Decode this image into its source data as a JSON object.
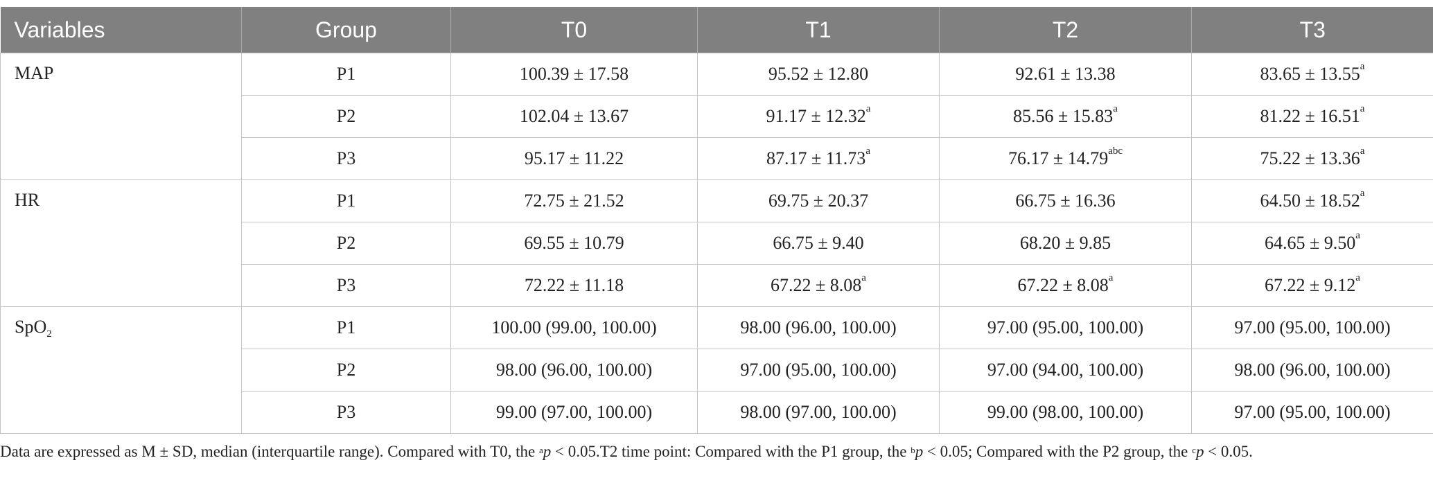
{
  "table": {
    "header": [
      "Variables",
      "Group",
      "T0",
      "T1",
      "T2",
      "T3"
    ],
    "rows": [
      {
        "variable": {
          "text": "MAP"
        },
        "group": "P1",
        "cells": [
          {
            "text": "100.39 ± 17.58"
          },
          {
            "text": "95.52 ± 12.80"
          },
          {
            "text": "92.61 ± 13.38"
          },
          {
            "text": "83.65 ± 13.55",
            "sup": "a"
          }
        ]
      },
      {
        "group": "P2",
        "cells": [
          {
            "text": "102.04 ± 13.67"
          },
          {
            "text": "91.17 ± 12.32",
            "sup": "a"
          },
          {
            "text": "85.56 ± 15.83",
            "sup": "a"
          },
          {
            "text": "81.22 ± 16.51",
            "sup": "a"
          }
        ]
      },
      {
        "group": "P3",
        "cells": [
          {
            "text": "95.17 ± 11.22"
          },
          {
            "text": "87.17 ± 11.73",
            "sup": "a"
          },
          {
            "text": "76.17 ± 14.79",
            "sup": "abc"
          },
          {
            "text": "75.22 ± 13.36",
            "sup": "a"
          }
        ]
      },
      {
        "variable": {
          "text": "HR"
        },
        "group": "P1",
        "cells": [
          {
            "text": "72.75 ± 21.52"
          },
          {
            "text": "69.75 ± 20.37"
          },
          {
            "text": "66.75 ± 16.36"
          },
          {
            "text": "64.50 ± 18.52",
            "sup": "a"
          }
        ]
      },
      {
        "group": "P2",
        "cells": [
          {
            "text": "69.55 ± 10.79"
          },
          {
            "text": "66.75 ± 9.40"
          },
          {
            "text": "68.20 ± 9.85"
          },
          {
            "text": "64.65 ± 9.50",
            "sup": "a"
          }
        ]
      },
      {
        "group": "P3",
        "cells": [
          {
            "text": "72.22 ± 11.18"
          },
          {
            "text": "67.22 ± 8.08",
            "sup": "a"
          },
          {
            "text": "67.22 ± 8.08",
            "sup": "a"
          },
          {
            "text": "67.22 ± 9.12",
            "sup": "a"
          }
        ]
      },
      {
        "variable": {
          "text": "SpO",
          "sub": "2"
        },
        "group": "P1",
        "cells": [
          {
            "text": "100.00 (99.00, 100.00)"
          },
          {
            "text": "98.00 (96.00, 100.00)"
          },
          {
            "text": "97.00 (95.00, 100.00)"
          },
          {
            "text": "97.00 (95.00, 100.00)"
          }
        ]
      },
      {
        "group": "P2",
        "cells": [
          {
            "text": "98.00 (96.00, 100.00)"
          },
          {
            "text": "97.00 (95.00, 100.00)"
          },
          {
            "text": "97.00 (94.00, 100.00)"
          },
          {
            "text": "98.00 (96.00, 100.00)"
          }
        ]
      },
      {
        "group": "P3",
        "cells": [
          {
            "text": "99.00 (97.00, 100.00)"
          },
          {
            "text": "98.00 (97.00, 100.00)"
          },
          {
            "text": "99.00 (98.00, 100.00)"
          },
          {
            "text": "97.00 (95.00, 100.00)"
          }
        ]
      }
    ]
  },
  "footnote": [
    {
      "text": "Data are expressed as M ± SD, median (interquartile range). Compared with T0, the "
    },
    {
      "sup": "a"
    },
    {
      "italic": "p"
    },
    {
      "text": " < 0.05.T2 time point: Compared with the P1 group, the "
    },
    {
      "sup": "b"
    },
    {
      "italic": "p"
    },
    {
      "text": " < 0.05; Compared with the P2 group, the "
    },
    {
      "sup": "c"
    },
    {
      "italic": "p"
    },
    {
      "text": " < 0.05."
    }
  ]
}
